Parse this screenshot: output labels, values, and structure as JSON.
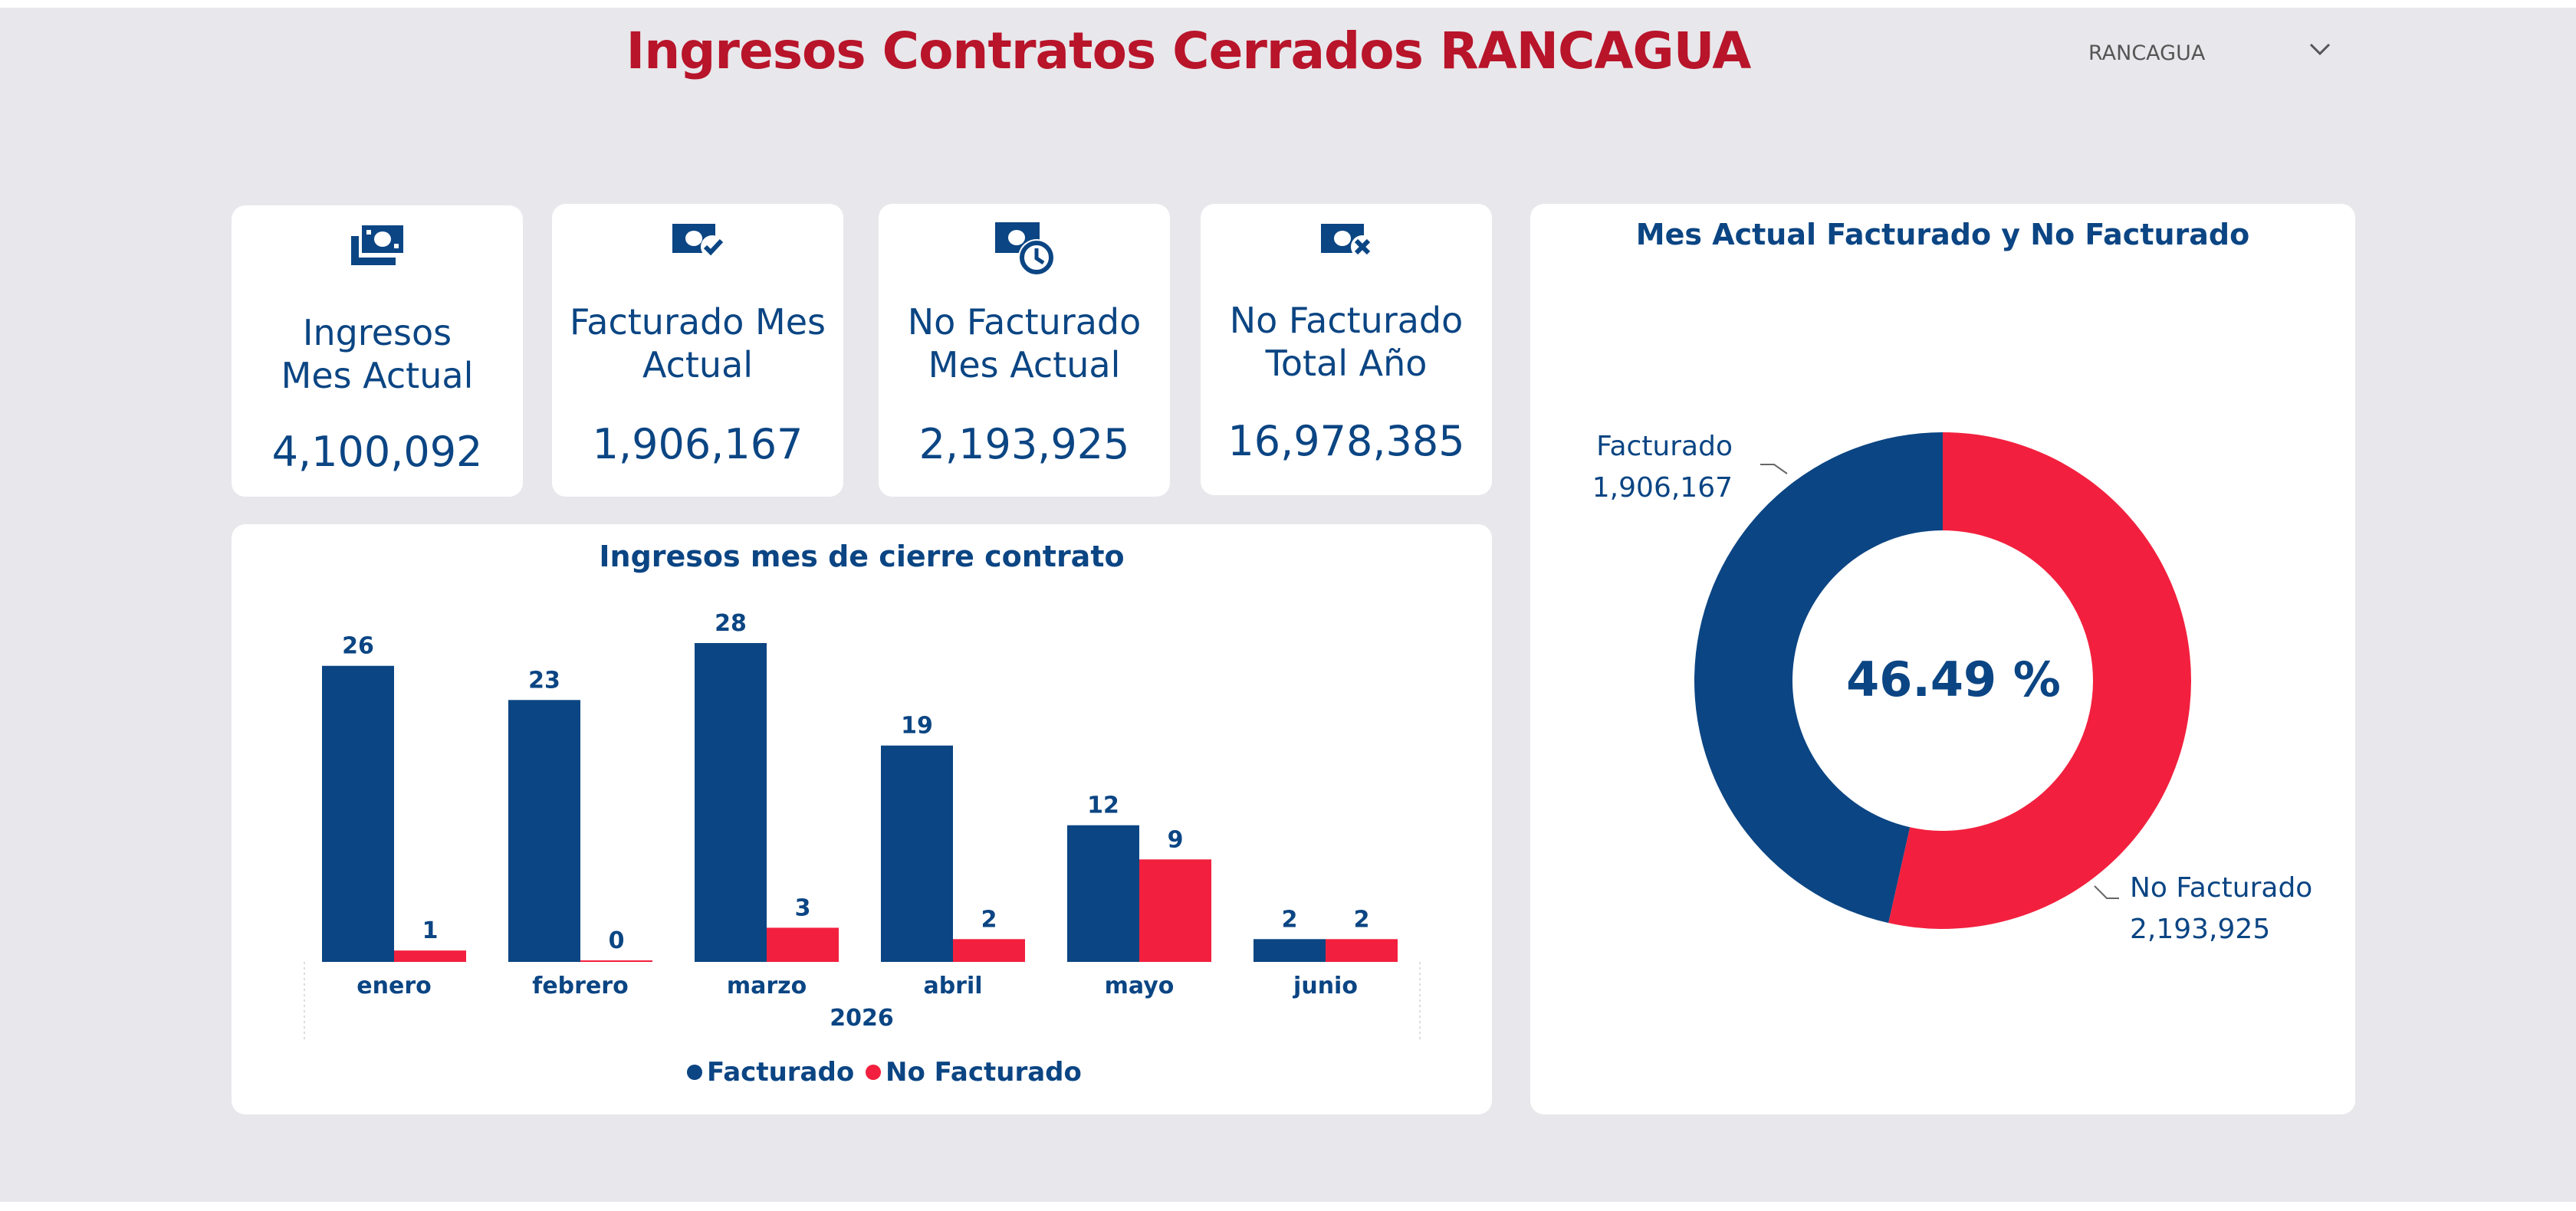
{
  "header": {
    "title": "Ingresos Contratos Cerrados  RANCAGUA",
    "slicer_value": "RANCAGUA"
  },
  "kpis": [
    {
      "icon": "money-icon",
      "label": "Ingresos Mes Actual",
      "value": "4,100,092"
    },
    {
      "icon": "money-check-icon",
      "label": "Facturado Mes Actual",
      "value": "1,906,167"
    },
    {
      "icon": "money-clock-icon",
      "label": "No Facturado Mes Actual",
      "value": "2,193,925"
    },
    {
      "icon": "money-x-icon",
      "label": "No Facturado Total Año",
      "value": "16,978,385"
    }
  ],
  "colors": {
    "facturado": "#0b4583",
    "no_facturado": "#f2203e",
    "title": "#b8142a",
    "text": "#0b4583"
  },
  "chart_data": [
    {
      "type": "bar",
      "title": "Ingresos mes de cierre contrato",
      "categories": [
        "enero",
        "febrero",
        "marzo",
        "abril",
        "mayo",
        "junio"
      ],
      "xlabel": "2026",
      "series": [
        {
          "name": "Facturado",
          "values": [
            26,
            23,
            28,
            19,
            12,
            2
          ]
        },
        {
          "name": "No Facturado",
          "values": [
            1,
            0,
            3,
            2,
            9,
            2
          ]
        }
      ],
      "ylim": [
        0,
        28
      ],
      "legend": "bottom-center",
      "grid": false
    },
    {
      "type": "pie",
      "title": "Mes Actual Facturado y No Facturado",
      "center_label": "46.49 %",
      "slices": [
        {
          "name": "Facturado",
          "value": 1906167,
          "label": "1,906,167"
        },
        {
          "name": "No Facturado",
          "value": 2193925,
          "label": "2,193,925"
        }
      ]
    }
  ]
}
